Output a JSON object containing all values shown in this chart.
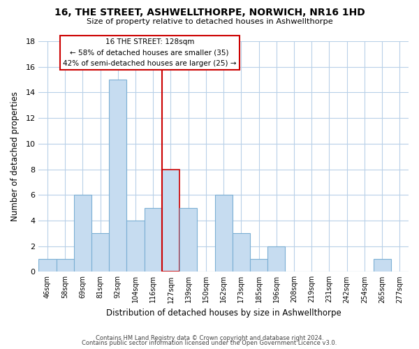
{
  "title": "16, THE STREET, ASHWELLTHORPE, NORWICH, NR16 1HD",
  "subtitle": "Size of property relative to detached houses in Ashwellthorpe",
  "xlabel": "Distribution of detached houses by size in Ashwellthorpe",
  "ylabel": "Number of detached properties",
  "bin_labels": [
    "46sqm",
    "58sqm",
    "69sqm",
    "81sqm",
    "92sqm",
    "104sqm",
    "116sqm",
    "127sqm",
    "139sqm",
    "150sqm",
    "162sqm",
    "173sqm",
    "185sqm",
    "196sqm",
    "208sqm",
    "219sqm",
    "231sqm",
    "242sqm",
    "254sqm",
    "265sqm",
    "277sqm"
  ],
  "bar_heights": [
    1,
    1,
    6,
    3,
    15,
    4,
    5,
    8,
    5,
    0,
    6,
    3,
    1,
    2,
    0,
    0,
    0,
    0,
    0,
    1,
    0
  ],
  "bar_color": "#c6dcf0",
  "bar_edge_color": "#7bafd4",
  "highlight_index": 7,
  "highlight_edge_color": "#cc0000",
  "red_line_index": 7,
  "ylim": [
    0,
    18
  ],
  "yticks": [
    0,
    2,
    4,
    6,
    8,
    10,
    12,
    14,
    16,
    18
  ],
  "annotation_title": "16 THE STREET: 128sqm",
  "annotation_line1": "← 58% of detached houses are smaller (35)",
  "annotation_line2": "42% of semi-detached houses are larger (25) →",
  "annotation_box_edge": "#cc0000",
  "footer1": "Contains HM Land Registry data © Crown copyright and database right 2024.",
  "footer2": "Contains public sector information licensed under the Open Government Licence v3.0.",
  "background_color": "#ffffff",
  "grid_color": "#b8d0e8"
}
